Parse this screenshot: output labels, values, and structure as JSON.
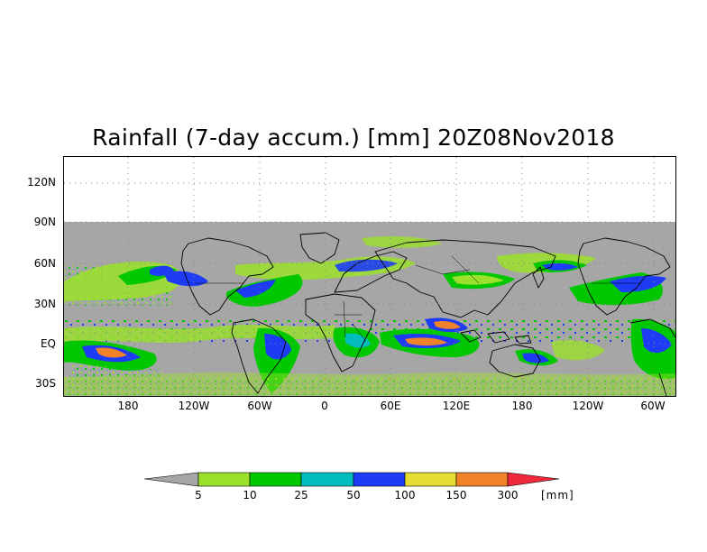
{
  "title": "Rainfall (7-day accum.) [mm] 20Z08Nov2018",
  "latitude_labels": [
    "120N",
    "90N",
    "60N",
    "30N",
    "EQ",
    "30S"
  ],
  "longitude_labels": [
    "180",
    "120W",
    "60W",
    "0",
    "60E",
    "120E",
    "180",
    "120W",
    "60W"
  ],
  "colorbar": {
    "unit": "[mm]",
    "levels": [
      "5",
      "10",
      "25",
      "50",
      "100",
      "150",
      "300"
    ],
    "colors": {
      "below": "#a6a6a6",
      "5-10": "#9be02a",
      "10-25": "#00c800",
      "25-50": "#00bcbc",
      "50-100": "#1e3cf5",
      "100-150": "#e6dc32",
      "150-300": "#f0822a",
      "above": "#f0283c"
    }
  },
  "colors": {
    "no_data": "#ffffff",
    "land_outline": "#000000",
    "grid": "#888888"
  }
}
